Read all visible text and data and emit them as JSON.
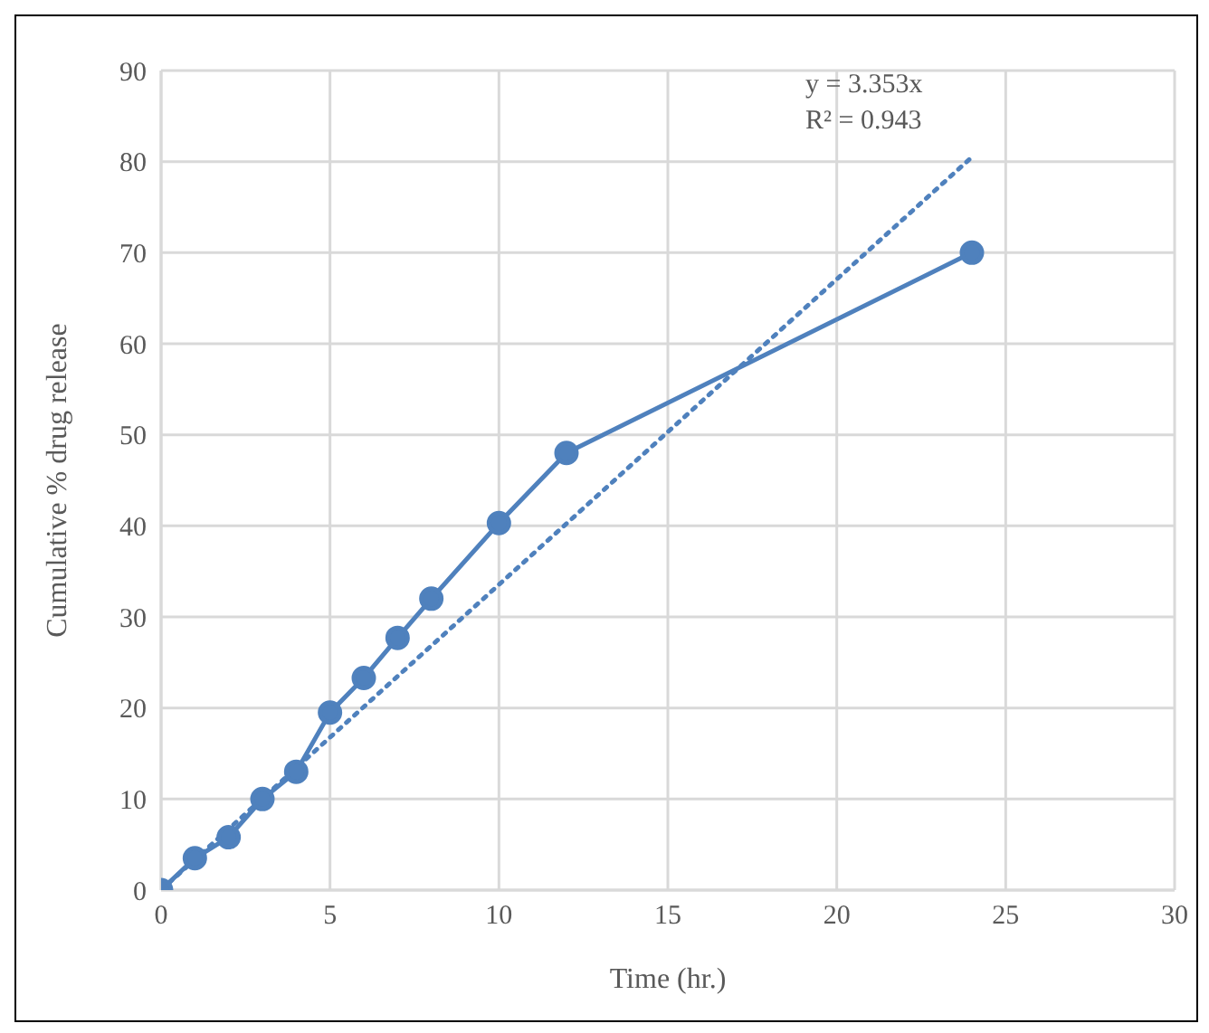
{
  "chart_data": {
    "type": "line",
    "xlabel": "Time (hr.)",
    "ylabel": "Cumulative % drug release",
    "xlim": [
      0,
      30
    ],
    "xticks": [
      0,
      5,
      10,
      15,
      20,
      25,
      30
    ],
    "ylim": [
      0,
      90
    ],
    "yticks": [
      0,
      10,
      20,
      30,
      40,
      50,
      60,
      70,
      80,
      90
    ],
    "grid": true,
    "annotations": [
      "y = 3.353x",
      "R² = 0.943"
    ],
    "series": [
      {
        "color": "#4f81bd",
        "marker": "circle",
        "line_style": "solid",
        "x": [
          0,
          1,
          2,
          3,
          4,
          5,
          6,
          7,
          8,
          10,
          12,
          24
        ],
        "values": [
          0,
          3.5,
          5.8,
          10,
          13,
          19.5,
          23.3,
          27.7,
          32,
          40.3,
          48,
          70
        ]
      },
      {
        "type": "line",
        "color": "#4f81bd",
        "marker": "none",
        "line_style": "dotted",
        "x": [
          0,
          24
        ],
        "values": [
          0,
          80.5
        ]
      }
    ]
  }
}
